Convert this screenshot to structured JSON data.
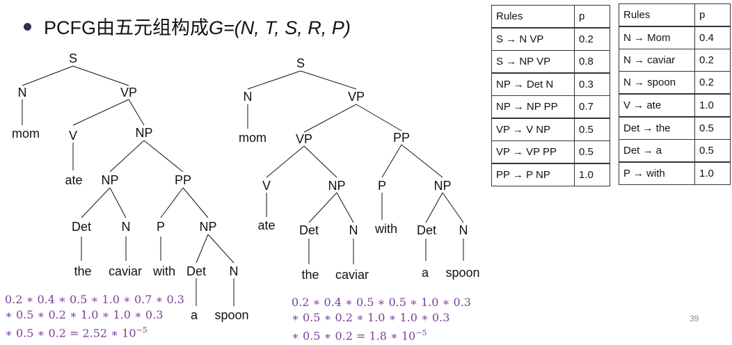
{
  "title": {
    "text": "PCFG由五元组构成",
    "formula": "G=(N, T, S, R, P)"
  },
  "tree1": {
    "S": "S",
    "N": "N",
    "VP": "VP",
    "mom": "mom",
    "V": "V",
    "NP": "NP",
    "ate": "ate",
    "NP2": "NP",
    "PP": "PP",
    "Det": "Det",
    "N2": "N",
    "P": "P",
    "NP3": "NP",
    "the": "the",
    "caviar": "caviar",
    "with": "with",
    "Det2": "Det",
    "N3": "N",
    "a": "a",
    "spoon": "spoon"
  },
  "tree2": {
    "S": "S",
    "N": "N",
    "VP": "VP",
    "mom": "mom",
    "VP2": "VP",
    "PP": "PP",
    "V": "V",
    "NP": "NP",
    "P": "P",
    "NP2": "NP",
    "ate": "ate",
    "Det": "Det",
    "N2": "N",
    "with": "with",
    "Det2": "Det",
    "N3": "N",
    "the": "the",
    "caviar": "caviar",
    "a": "a",
    "spoon": "spoon"
  },
  "calc1": [
    "0.2 ∗ 0.4 ∗ 0.5 ∗ 1.0 ∗ 0.7 ∗ 0.3",
    "∗ 0.5 ∗ 0.2 ∗ 1.0 ∗ 1.0 ∗ 0.3",
    "∗ 0.5 ∗ 0.2 = 2.52 ∗ 10"
  ],
  "calc1_exp": "−5",
  "calc2": [
    "0.2 ∗ 0.4 ∗ 0.5 ∗ 0.5 ∗ 1.0 ∗ 0.3",
    "∗ 0.5 ∗ 0.2 ∗ 1.0 ∗ 1.0 ∗ 0.3",
    "∗ 0.5 ∗ 0.2 = 1.8 ∗ 10"
  ],
  "calc2_exp": "−5",
  "table1": {
    "header": [
      "Rules",
      "p"
    ],
    "rows": [
      [
        "S → N VP",
        "0.2"
      ],
      [
        "S → NP VP",
        "0.8"
      ],
      [
        "NP → Det N",
        "0.3"
      ],
      [
        "NP → NP PP",
        "0.7"
      ],
      [
        "VP → V NP",
        "0.5"
      ],
      [
        "VP → VP PP",
        "0.5"
      ],
      [
        "PP → P NP",
        "1.0"
      ]
    ]
  },
  "table2": {
    "header": [
      "Rules",
      "p"
    ],
    "rows": [
      [
        "N → Mom",
        "0.4"
      ],
      [
        "N → caviar",
        "0.2"
      ],
      [
        "N → spoon",
        "0.2"
      ],
      [
        "V → ate",
        "1.0"
      ],
      [
        "Det → the",
        "0.5"
      ],
      [
        "Det → a",
        "0.5"
      ],
      [
        "P → with",
        "1.0"
      ]
    ]
  },
  "page_number": "39",
  "colors": {
    "calc": "#7a3e9d",
    "bullet": "#2b3250"
  }
}
